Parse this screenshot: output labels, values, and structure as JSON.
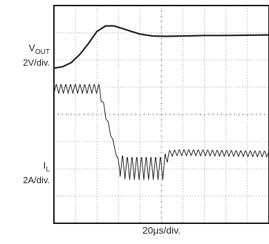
{
  "chart_data": {
    "type": "line",
    "grid": true,
    "divisions": {
      "x": 10,
      "y": 8
    },
    "xlabel": "20µs/div.",
    "x_unit": "div",
    "xlim": [
      0,
      10
    ],
    "y_unit": "div",
    "ylim": [
      0,
      8
    ],
    "series": [
      {
        "name": "VOUT",
        "name_parts": {
          "base": "V",
          "sub": "OUT"
        },
        "scale": "2V/div.",
        "ripple": false,
        "points": [
          [
            0,
            5.7
          ],
          [
            0.4,
            5.75
          ],
          [
            0.8,
            5.9
          ],
          [
            1.2,
            6.2
          ],
          [
            1.6,
            6.6
          ],
          [
            2.0,
            7.05
          ],
          [
            2.4,
            7.25
          ],
          [
            2.8,
            7.25
          ],
          [
            3.2,
            7.15
          ],
          [
            3.6,
            7.05
          ],
          [
            4.0,
            6.95
          ],
          [
            4.6,
            6.88
          ],
          [
            5.2,
            6.87
          ],
          [
            6.0,
            6.88
          ],
          [
            7.0,
            6.9
          ],
          [
            8.0,
            6.9
          ],
          [
            10,
            6.92
          ]
        ]
      },
      {
        "name": "IL",
        "name_parts": {
          "base": "I",
          "sub": "L"
        },
        "scale": "2A/div.",
        "ripple": true,
        "points": [
          [
            0,
            4.95
          ],
          [
            2.1,
            4.95
          ],
          [
            2.5,
            3.7
          ],
          [
            2.85,
            2.7
          ],
          [
            3.0,
            2.15
          ],
          [
            3.4,
            2.05
          ],
          [
            5.1,
            2.05
          ],
          [
            5.3,
            2.55
          ],
          [
            5.7,
            2.6
          ],
          [
            6.5,
            2.6
          ],
          [
            10,
            2.55
          ]
        ],
        "ripple_amplitude_div": [
          [
            0,
            0.18
          ],
          [
            2.1,
            0.18
          ],
          [
            2.9,
            0.05
          ],
          [
            3.1,
            0.45
          ],
          [
            5.1,
            0.45
          ],
          [
            5.4,
            0.12
          ],
          [
            10,
            0.12
          ]
        ]
      }
    ]
  }
}
